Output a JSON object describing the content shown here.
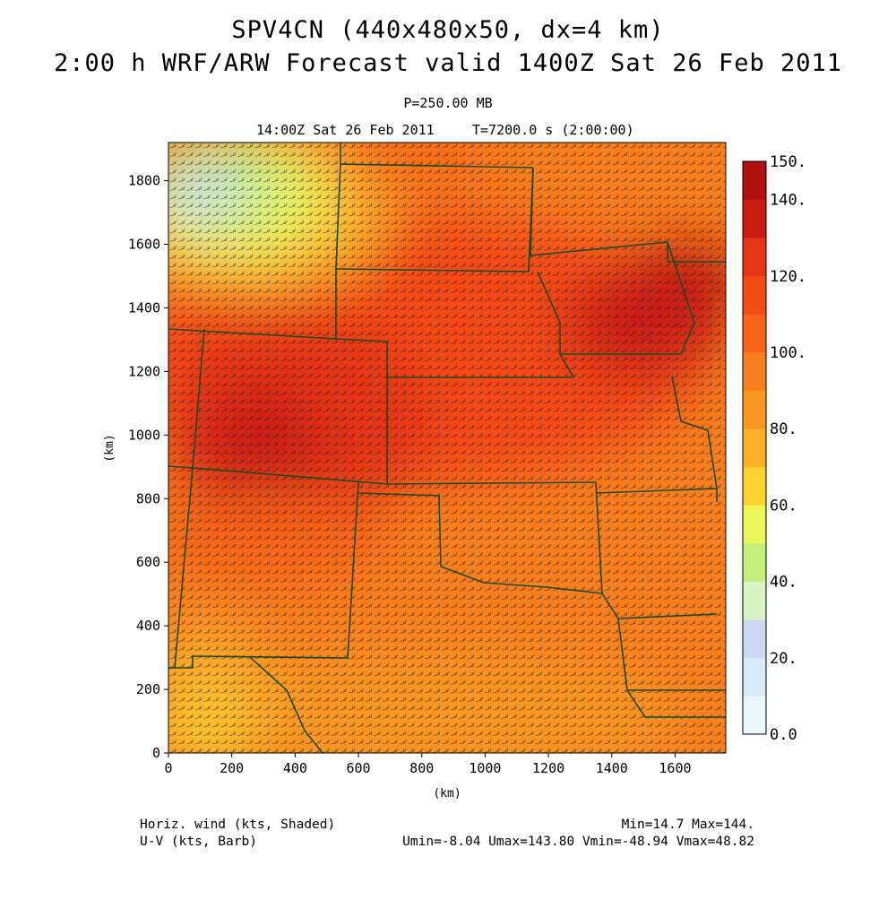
{
  "header": {
    "title_line1": "SPV4CN (440x480x50, dx=4 km)",
    "title_line2": "2:00 h WRF/ARW Forecast valid 1400Z Sat 26 Feb 2011",
    "level": "P=250.00 MB",
    "valid_time": "14:00Z Sat 26 Feb 2011",
    "elapsed": "T=7200.0 s (2:00:00)"
  },
  "map": {
    "x_axis": {
      "label": "(km)",
      "ticks": [
        "0",
        "200",
        "400",
        "600",
        "800",
        "1000",
        "1200",
        "1400",
        "1600"
      ],
      "range": [
        0,
        1760
      ]
    },
    "y_axis": {
      "label": "(km)",
      "ticks": [
        "0",
        "200",
        "400",
        "600",
        "800",
        "1000",
        "1200",
        "1400",
        "1600",
        "1800"
      ],
      "range": [
        0,
        1920
      ]
    },
    "shading_field": "Horiz. wind (kts, Shaded)",
    "vector_field": "U-V (kts, Barb)"
  },
  "colorbar": {
    "labels": [
      "0.0",
      "20.",
      "40.",
      "60.",
      "80.",
      "100.",
      "120.",
      "140.",
      "150."
    ],
    "colors": [
      "#eaf6fc",
      "#d8ecf8",
      "#cdd8f5",
      "#d8f4c4",
      "#c2f07a",
      "#ecf85a",
      "#fcd22e",
      "#fbb02a",
      "#f99720",
      "#f97f1e",
      "#f86418",
      "#f44a14",
      "#e63414",
      "#cc1c12",
      "#b01010"
    ]
  },
  "footer": {
    "shading_label": "Horiz. wind (kts, Shaded)",
    "barb_label": "U-V (kts, Barb)",
    "minmax": "Min=14.7 Max=144.",
    "uv_stats": "Umin=-8.04 Umax=143.80 Vmin=-48.94 Vmax=48.82"
  }
}
